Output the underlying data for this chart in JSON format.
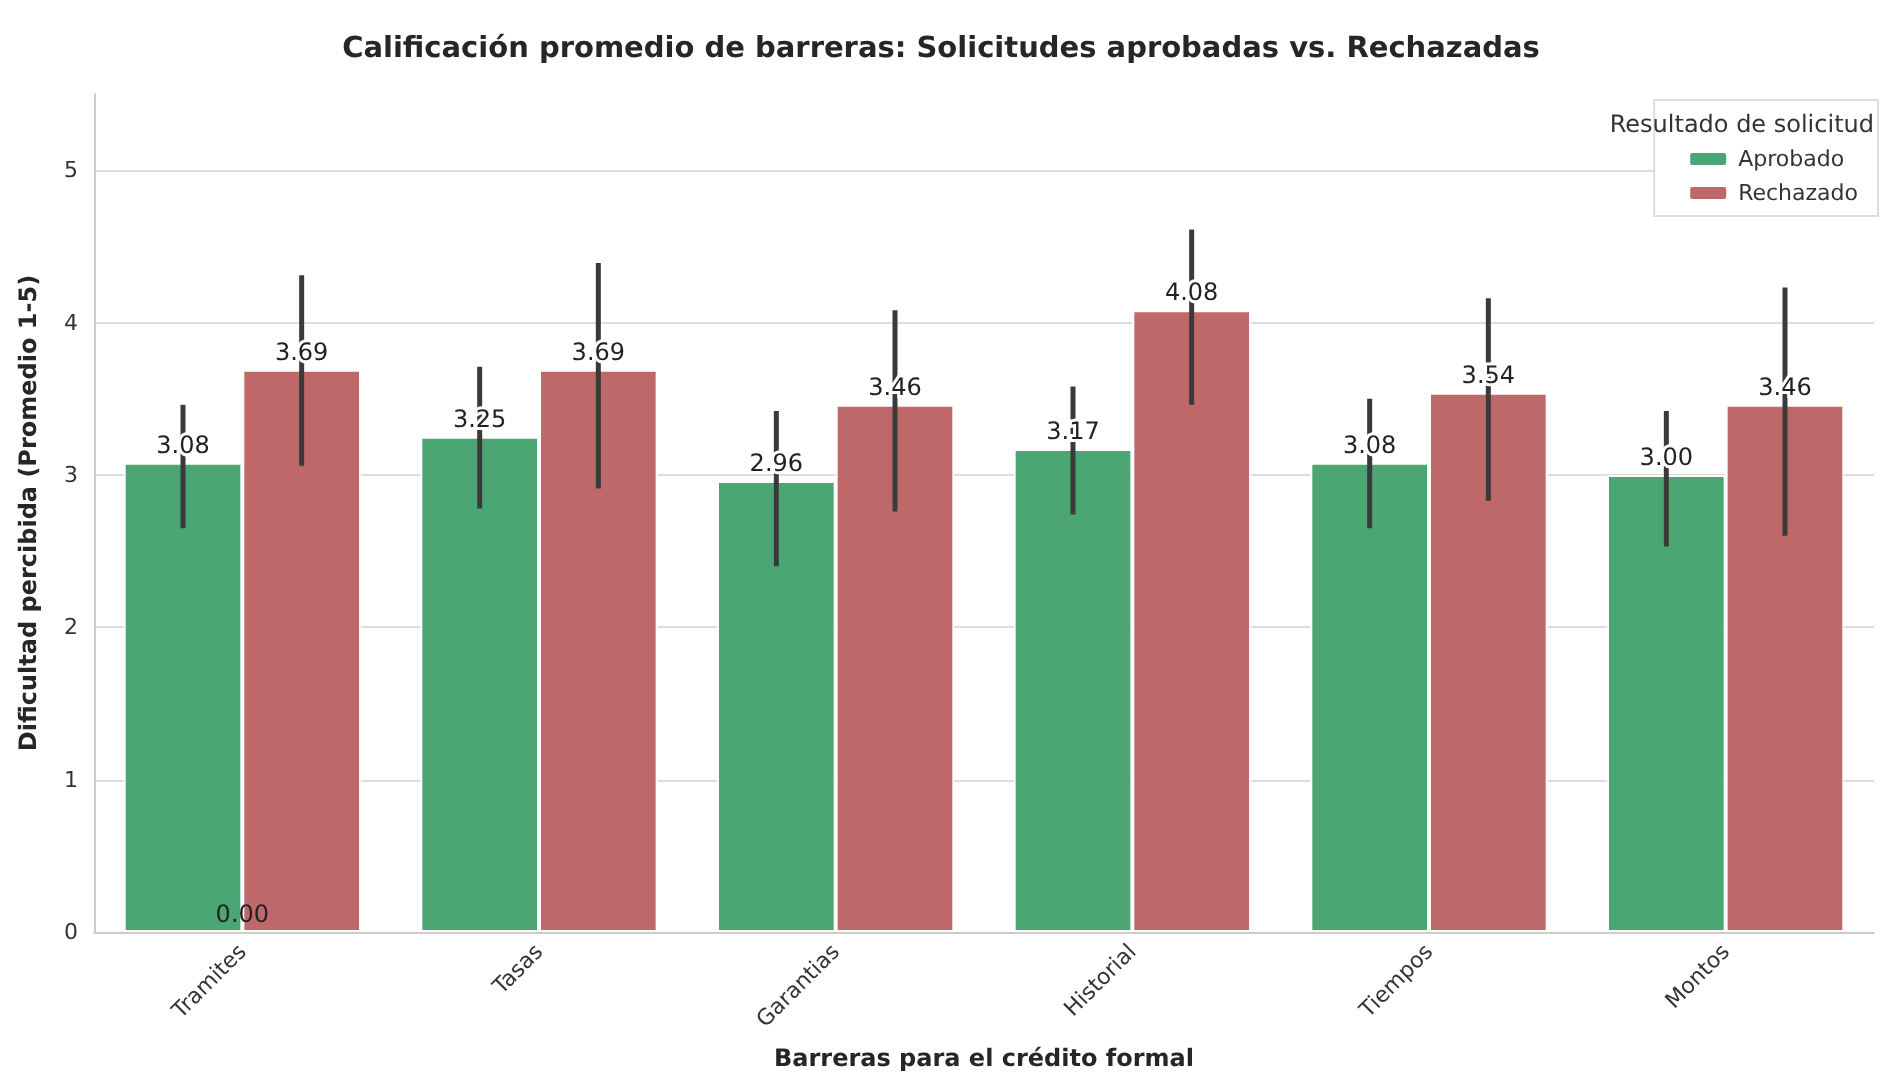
{
  "chart_data": {
    "type": "bar",
    "title": "Calificación promedio de barreras: Solicitudes aprobadas vs. Rechazadas",
    "xlabel": "Barreras para el crédito formal",
    "ylabel": "Dificultad percibida (Promedio 1-5)",
    "legend_title": "Resultado de solicitud",
    "categories": [
      "Tramites",
      "Tasas",
      "Garantias",
      "Historial",
      "Tiempos",
      "Montos"
    ],
    "series": [
      {
        "name": "Aprobado",
        "color": "#4ca674",
        "values": [
          3.08,
          3.25,
          2.96,
          3.17,
          3.08,
          3.0
        ],
        "value_labels": [
          "3.08",
          "3.25",
          "2.96",
          "3.17",
          "3.08",
          "3.00"
        ],
        "errors": [
          [
            2.65,
            3.46
          ],
          [
            2.78,
            3.71
          ],
          [
            2.4,
            3.42
          ],
          [
            2.74,
            3.58
          ],
          [
            2.65,
            3.5
          ],
          [
            2.53,
            3.42
          ]
        ]
      },
      {
        "name": "Rechazado",
        "color": "#bf6869",
        "values": [
          3.69,
          3.69,
          3.46,
          4.08,
          3.54,
          3.46
        ],
        "value_labels": [
          "3.69",
          "3.69",
          "3.46",
          "4.08",
          "3.54",
          "3.46"
        ],
        "errors": [
          [
            3.06,
            4.31
          ],
          [
            2.91,
            4.39
          ],
          [
            2.76,
            4.08
          ],
          [
            3.46,
            4.61
          ],
          [
            2.83,
            4.16
          ],
          [
            2.6,
            4.23
          ]
        ]
      }
    ],
    "annotations": [
      {
        "text": "0.00",
        "x": "Tramites",
        "y": 0
      }
    ],
    "ylim": [
      0,
      5.5
    ],
    "yticks": [
      0,
      1,
      2,
      3,
      4,
      5
    ],
    "grid": "y",
    "legend": "top right"
  }
}
